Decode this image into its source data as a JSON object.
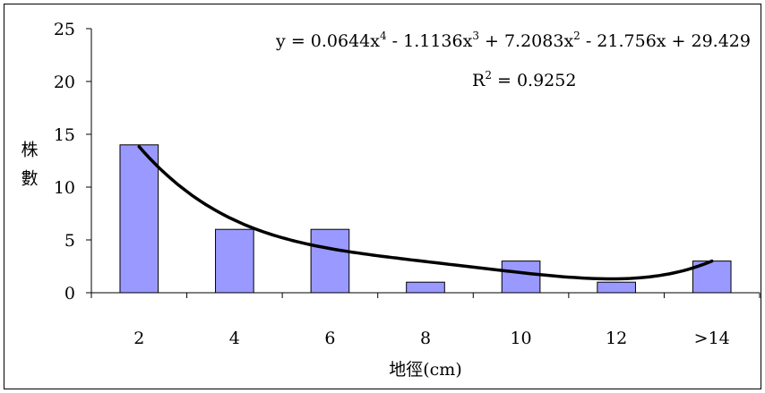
{
  "chart_data": {
    "type": "bar",
    "categories": [
      "2",
      "4",
      "6",
      "8",
      "10",
      "12",
      ">14"
    ],
    "values": [
      14,
      6,
      6,
      1,
      3,
      1,
      3
    ],
    "xlabel": "地徑(cm)",
    "ylabel": "株數",
    "ylim": [
      0,
      25
    ],
    "yticks": [
      0,
      5,
      10,
      15,
      20,
      25
    ],
    "grid": false,
    "legend": "none",
    "bar_color": "#9999ff",
    "trendline": {
      "type": "polynomial",
      "order": 4,
      "coefficients": [
        0.0644,
        -1.1136,
        7.2083,
        -21.756,
        29.429
      ],
      "equation_parts": {
        "lead": "y = 0.0644x",
        "exp4": "4",
        "term3": " - 1.1136x",
        "exp3": "3",
        "term2": " + 7.2083x",
        "exp2": "2",
        "rest": " - 21.756x + 29.429"
      },
      "r2_parts": {
        "lead": "R",
        "exp": "2",
        "rest": " = 0.9252"
      },
      "color": "#000000"
    }
  }
}
